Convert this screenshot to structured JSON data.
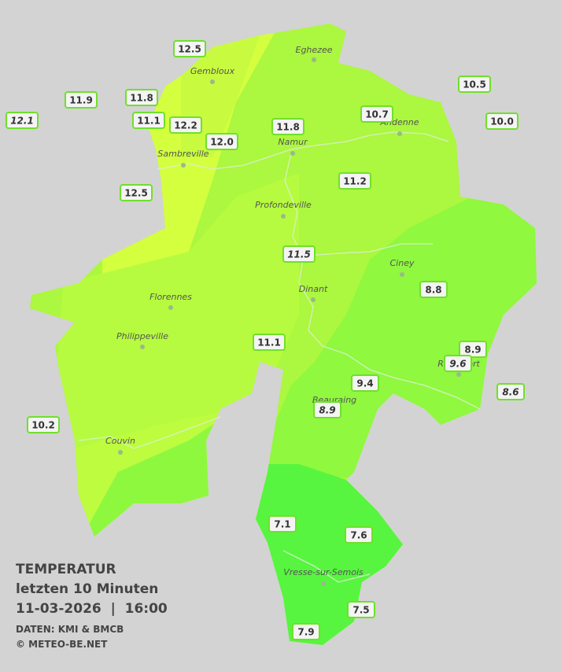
{
  "header": {
    "title": "TEMPERATUR",
    "subtitle": "letzten 10 Minuten",
    "datetime": "11-03-2026  |  16:00",
    "source": "DATEN: KMI & BMCB",
    "copyright": "© METEO-BE.NET"
  },
  "towns": [
    {
      "name": "Eghezee"
    },
    {
      "name": "Gembloux"
    },
    {
      "name": "Andenne"
    },
    {
      "name": "Namur"
    },
    {
      "name": "Sambreville"
    },
    {
      "name": "Profondeville"
    },
    {
      "name": "Ciney"
    },
    {
      "name": "Dinant"
    },
    {
      "name": "Florennes"
    },
    {
      "name": "Philippeville"
    },
    {
      "name": "Rochefort"
    },
    {
      "name": "Beauraing"
    },
    {
      "name": "Couvin"
    },
    {
      "name": "Vresse-sur-Semois"
    }
  ],
  "stations": [
    {
      "value": "12.5",
      "italic": false
    },
    {
      "value": "11.9",
      "italic": false
    },
    {
      "value": "11.8",
      "italic": false
    },
    {
      "value": "12.1",
      "italic": true
    },
    {
      "value": "11.1",
      "italic": false
    },
    {
      "value": "12.2",
      "italic": false
    },
    {
      "value": "12.0",
      "italic": false
    },
    {
      "value": "11.8",
      "italic": false
    },
    {
      "value": "10.7",
      "italic": false
    },
    {
      "value": "10.5",
      "italic": false
    },
    {
      "value": "10.0",
      "italic": false
    },
    {
      "value": "12.5",
      "italic": false
    },
    {
      "value": "11.2",
      "italic": false
    },
    {
      "value": "11.5",
      "italic": true
    },
    {
      "value": "8.8",
      "italic": false
    },
    {
      "value": "11.1",
      "italic": false
    },
    {
      "value": "8.9",
      "italic": false
    },
    {
      "value": "9.6",
      "italic": true
    },
    {
      "value": "9.4",
      "italic": false
    },
    {
      "value": "8.9",
      "italic": true
    },
    {
      "value": "8.6",
      "italic": true
    },
    {
      "value": "10.2",
      "italic": false
    },
    {
      "value": "7.1",
      "italic": false
    },
    {
      "value": "7.6",
      "italic": false
    },
    {
      "value": "7.5",
      "italic": false
    },
    {
      "value": "7.9",
      "italic": false
    }
  ]
}
